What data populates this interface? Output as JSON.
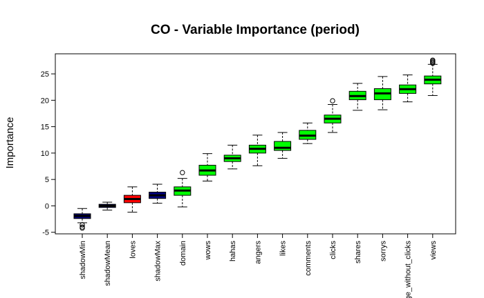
{
  "chart_data": {
    "type": "boxplot",
    "title": "CO - Variable Importance (period)",
    "xlabel": "",
    "ylabel": "Importance",
    "ylim": [
      -5.3,
      28.8
    ],
    "yticks": [
      -5,
      0,
      5,
      10,
      15,
      20,
      25
    ],
    "grid": false,
    "legend": "none",
    "colors": {
      "shadow": "#000080",
      "rejected": "#ff0000",
      "confirmed": "#00ff00"
    },
    "categories": [
      "shadowMin",
      "shadowMean",
      "loves",
      "shadowMax",
      "domain",
      "wows",
      "hahas",
      "angers",
      "likes",
      "comments",
      "clicks",
      "shares",
      "sorrys",
      "page_without_clicks",
      "views"
    ],
    "boxes": [
      {
        "label": "shadowMin",
        "group": "shadow",
        "whisker_low": -3.2,
        "q1": -2.4,
        "median": -1.9,
        "q3": -1.5,
        "whisker_high": -0.5,
        "outliers": [
          -3.6,
          -4.0,
          -4.2
        ]
      },
      {
        "label": "shadowMean",
        "group": "shadow",
        "whisker_low": -0.8,
        "q1": -0.3,
        "median": 0.0,
        "q3": 0.3,
        "whisker_high": 0.7,
        "outliers": []
      },
      {
        "label": "loves",
        "group": "rejected",
        "whisker_low": -1.2,
        "q1": 0.6,
        "median": 1.3,
        "q3": 2.0,
        "whisker_high": 3.6,
        "outliers": []
      },
      {
        "label": "shadowMax",
        "group": "shadow",
        "whisker_low": 0.5,
        "q1": 1.4,
        "median": 2.0,
        "q3": 2.6,
        "whisker_high": 4.1,
        "outliers": []
      },
      {
        "label": "domain",
        "group": "confirmed",
        "whisker_low": -0.2,
        "q1": 2.0,
        "median": 2.9,
        "q3": 3.6,
        "whisker_high": 5.2,
        "outliers": [
          6.3
        ]
      },
      {
        "label": "wows",
        "group": "confirmed",
        "whisker_low": 4.7,
        "q1": 5.8,
        "median": 6.7,
        "q3": 7.7,
        "whisker_high": 9.9,
        "outliers": []
      },
      {
        "label": "hahas",
        "group": "confirmed",
        "whisker_low": 7.0,
        "q1": 8.4,
        "median": 9.0,
        "q3": 9.6,
        "whisker_high": 11.5,
        "outliers": []
      },
      {
        "label": "angers",
        "group": "confirmed",
        "whisker_low": 7.6,
        "q1": 10.0,
        "median": 10.8,
        "q3": 11.5,
        "whisker_high": 13.4,
        "outliers": []
      },
      {
        "label": "likes",
        "group": "confirmed",
        "whisker_low": 9.0,
        "q1": 10.5,
        "median": 11.0,
        "q3": 12.2,
        "whisker_high": 13.9,
        "outliers": []
      },
      {
        "label": "comments",
        "group": "confirmed",
        "whisker_low": 11.8,
        "q1": 12.6,
        "median": 13.3,
        "q3": 14.3,
        "whisker_high": 15.7,
        "outliers": []
      },
      {
        "label": "clicks",
        "group": "confirmed",
        "whisker_low": 13.9,
        "q1": 15.7,
        "median": 16.5,
        "q3": 17.2,
        "whisker_high": 19.2,
        "outliers": [
          19.9
        ]
      },
      {
        "label": "shares",
        "group": "confirmed",
        "whisker_low": 18.1,
        "q1": 20.1,
        "median": 20.8,
        "q3": 21.7,
        "whisker_high": 23.2,
        "outliers": []
      },
      {
        "label": "sorrys",
        "group": "confirmed",
        "whisker_low": 18.2,
        "q1": 20.1,
        "median": 21.3,
        "q3": 22.2,
        "whisker_high": 24.5,
        "outliers": []
      },
      {
        "label": "page_without_clicks",
        "group": "confirmed",
        "whisker_low": 19.7,
        "q1": 21.3,
        "median": 22.1,
        "q3": 22.9,
        "whisker_high": 24.8,
        "outliers": []
      },
      {
        "label": "views",
        "group": "confirmed",
        "whisker_low": 20.9,
        "q1": 23.1,
        "median": 23.9,
        "q3": 24.6,
        "whisker_high": 26.8,
        "outliers": [
          27.0,
          27.2,
          27.4,
          27.6
        ]
      }
    ]
  }
}
